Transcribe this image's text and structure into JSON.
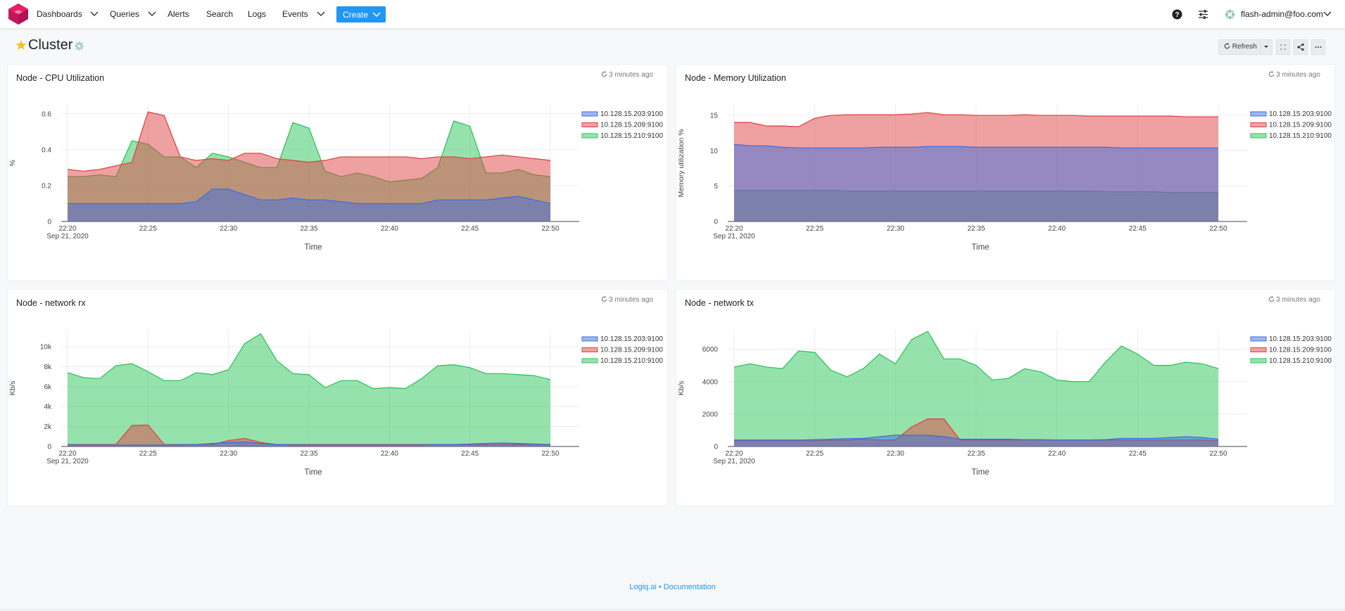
{
  "nav": {
    "items": [
      "Dashboards",
      "Queries",
      "Alerts",
      "Search",
      "Logs",
      "Events"
    ],
    "create_label": "Create",
    "user": "flash-admin@foo.com"
  },
  "page": {
    "title": "Cluster",
    "refresh_label": "Refresh"
  },
  "footer": {
    "brand": "Logiq.ai",
    "separator": "•",
    "docs": "Documentation"
  },
  "colors": {
    "blue": "#3d6fe0",
    "red": "#e04444",
    "green": "#2ec55b",
    "accent": "#2196f3"
  },
  "widgets": [
    {
      "title": "Node - CPU Utilization",
      "updated": "3 minutes ago"
    },
    {
      "title": "Node - Memory Utilization",
      "updated": "3 minutes ago"
    },
    {
      "title": "Node - network rx",
      "updated": "3 minutes ago"
    },
    {
      "title": "Node - network tx",
      "updated": "3 minutes ago"
    }
  ],
  "chart_data": [
    {
      "type": "area",
      "ylabel": "%",
      "xlabel": "Time",
      "x": [
        "22:20",
        "22:21",
        "22:22",
        "22:23",
        "22:24",
        "22:25",
        "22:26",
        "22:27",
        "22:28",
        "22:29",
        "22:30",
        "22:31",
        "22:32",
        "22:33",
        "22:34",
        "22:35",
        "22:36",
        "22:37",
        "22:38",
        "22:39",
        "22:40",
        "22:41",
        "22:42",
        "22:43",
        "22:44",
        "22:45",
        "22:46",
        "22:47",
        "22:48",
        "22:49",
        "22:50"
      ],
      "xticks": [
        "22:20",
        "22:25",
        "22:30",
        "22:35",
        "22:40",
        "22:45",
        "22:50"
      ],
      "xsub": "Sep 21, 2020",
      "yticks": [
        "0",
        "0.2",
        "0.4",
        "0.6"
      ],
      "ylim": [
        0,
        0.65
      ],
      "series": [
        {
          "name": "10.128.15.203:9100",
          "color": "blue",
          "values": [
            0.1,
            0.1,
            0.1,
            0.1,
            0.1,
            0.1,
            0.1,
            0.1,
            0.11,
            0.18,
            0.18,
            0.15,
            0.12,
            0.12,
            0.13,
            0.12,
            0.12,
            0.11,
            0.1,
            0.1,
            0.1,
            0.1,
            0.1,
            0.12,
            0.12,
            0.12,
            0.12,
            0.13,
            0.14,
            0.12,
            0.1
          ]
        },
        {
          "name": "10.128.15.209:9100",
          "color": "red",
          "values": [
            0.29,
            0.28,
            0.29,
            0.31,
            0.33,
            0.61,
            0.59,
            0.36,
            0.34,
            0.35,
            0.34,
            0.38,
            0.38,
            0.35,
            0.34,
            0.33,
            0.34,
            0.36,
            0.36,
            0.36,
            0.36,
            0.36,
            0.35,
            0.36,
            0.36,
            0.35,
            0.36,
            0.37,
            0.36,
            0.35,
            0.34
          ]
        },
        {
          "name": "10.128.15.210:9100",
          "color": "green",
          "values": [
            0.25,
            0.25,
            0.26,
            0.25,
            0.45,
            0.43,
            0.36,
            0.36,
            0.3,
            0.38,
            0.36,
            0.33,
            0.3,
            0.3,
            0.55,
            0.52,
            0.28,
            0.25,
            0.27,
            0.25,
            0.22,
            0.23,
            0.24,
            0.3,
            0.56,
            0.53,
            0.27,
            0.27,
            0.29,
            0.26,
            0.25
          ]
        }
      ]
    },
    {
      "type": "area",
      "ylabel": "Memory utilization %",
      "xlabel": "Time",
      "x": [
        "22:20",
        "22:21",
        "22:22",
        "22:23",
        "22:24",
        "22:25",
        "22:26",
        "22:27",
        "22:28",
        "22:29",
        "22:30",
        "22:31",
        "22:32",
        "22:33",
        "22:34",
        "22:35",
        "22:36",
        "22:37",
        "22:38",
        "22:39",
        "22:40",
        "22:41",
        "22:42",
        "22:43",
        "22:44",
        "22:45",
        "22:46",
        "22:47",
        "22:48",
        "22:49",
        "22:50"
      ],
      "xticks": [
        "22:20",
        "22:25",
        "22:30",
        "22:35",
        "22:40",
        "22:45",
        "22:50"
      ],
      "xsub": "Sep 21, 2020",
      "yticks": [
        "0",
        "5",
        "10",
        "15"
      ],
      "ylim": [
        0,
        16.5
      ],
      "series": [
        {
          "name": "10.128.15.203:9100",
          "color": "blue",
          "values": [
            10.9,
            10.7,
            10.7,
            10.5,
            10.4,
            10.4,
            10.4,
            10.4,
            10.4,
            10.5,
            10.5,
            10.5,
            10.6,
            10.6,
            10.6,
            10.5,
            10.5,
            10.5,
            10.5,
            10.5,
            10.5,
            10.5,
            10.5,
            10.5,
            10.4,
            10.4,
            10.4,
            10.4,
            10.4,
            10.4,
            10.4
          ]
        },
        {
          "name": "10.128.15.209:9100",
          "color": "red",
          "values": [
            14.0,
            14.0,
            13.5,
            13.5,
            13.4,
            14.6,
            15.0,
            15.1,
            15.1,
            15.1,
            15.1,
            15.2,
            15.4,
            15.1,
            15.1,
            15.0,
            15.0,
            15.0,
            15.1,
            15.0,
            15.0,
            15.0,
            14.9,
            14.9,
            14.9,
            14.9,
            14.9,
            14.9,
            14.8,
            14.8,
            14.8
          ]
        },
        {
          "name": "10.128.15.210:9100",
          "color": "green",
          "values": [
            4.4,
            4.4,
            4.4,
            4.4,
            4.4,
            4.4,
            4.4,
            4.3,
            4.3,
            4.3,
            4.3,
            4.3,
            4.3,
            4.3,
            4.3,
            4.3,
            4.3,
            4.3,
            4.3,
            4.3,
            4.3,
            4.3,
            4.3,
            4.2,
            4.2,
            4.2,
            4.2,
            4.1,
            4.1,
            4.1,
            4.1
          ]
        }
      ]
    },
    {
      "type": "area",
      "ylabel": "Kb/s",
      "xlabel": "Time",
      "x": [
        "22:20",
        "22:21",
        "22:22",
        "22:23",
        "22:24",
        "22:25",
        "22:26",
        "22:27",
        "22:28",
        "22:29",
        "22:30",
        "22:31",
        "22:32",
        "22:33",
        "22:34",
        "22:35",
        "22:36",
        "22:37",
        "22:38",
        "22:39",
        "22:40",
        "22:41",
        "22:42",
        "22:43",
        "22:44",
        "22:45",
        "22:46",
        "22:47",
        "22:48",
        "22:49",
        "22:50"
      ],
      "xticks": [
        "22:20",
        "22:25",
        "22:30",
        "22:35",
        "22:40",
        "22:45",
        "22:50"
      ],
      "xsub": "Sep 21, 2020",
      "yticks": [
        "0",
        "2k",
        "4k",
        "6k",
        "8k",
        "10k"
      ],
      "ylim": [
        0,
        11700
      ],
      "series": [
        {
          "name": "10.128.15.203:9100",
          "color": "blue",
          "values": [
            150,
            150,
            150,
            150,
            150,
            150,
            150,
            150,
            200,
            300,
            400,
            450,
            300,
            200,
            150,
            150,
            150,
            150,
            150,
            150,
            150,
            150,
            150,
            200,
            200,
            250,
            300,
            350,
            300,
            250,
            200
          ]
        },
        {
          "name": "10.128.15.209:9100",
          "color": "red",
          "values": [
            200,
            200,
            200,
            200,
            2100,
            2150,
            200,
            200,
            200,
            200,
            600,
            800,
            400,
            200,
            200,
            200,
            200,
            200,
            200,
            200,
            200,
            200,
            200,
            200,
            200,
            200,
            200,
            200,
            200,
            200,
            200
          ]
        },
        {
          "name": "10.128.15.210:9100",
          "color": "green",
          "values": [
            7400,
            6900,
            6800,
            8100,
            8300,
            7500,
            6600,
            6600,
            7400,
            7200,
            7700,
            10300,
            11300,
            8600,
            7300,
            7200,
            5900,
            6600,
            6600,
            5800,
            5900,
            5800,
            6800,
            8100,
            8200,
            7900,
            7300,
            7300,
            7200,
            7100,
            6700
          ]
        }
      ]
    },
    {
      "type": "area",
      "ylabel": "Kb/s",
      "xlabel": "Time",
      "x": [
        "22:20",
        "22:21",
        "22:22",
        "22:23",
        "22:24",
        "22:25",
        "22:26",
        "22:27",
        "22:28",
        "22:29",
        "22:30",
        "22:31",
        "22:32",
        "22:33",
        "22:34",
        "22:35",
        "22:36",
        "22:37",
        "22:38",
        "22:39",
        "22:40",
        "22:41",
        "22:42",
        "22:43",
        "22:44",
        "22:45",
        "22:46",
        "22:47",
        "22:48",
        "22:49",
        "22:50"
      ],
      "xticks": [
        "22:20",
        "22:25",
        "22:30",
        "22:35",
        "22:40",
        "22:45",
        "22:50"
      ],
      "xsub": "Sep 21, 2020",
      "yticks": [
        "0",
        "2000",
        "4000",
        "6000"
      ],
      "ylim": [
        0,
        7200
      ],
      "series": [
        {
          "name": "10.128.15.203:9100",
          "color": "blue",
          "values": [
            400,
            400,
            400,
            400,
            400,
            420,
            450,
            480,
            500,
            600,
            700,
            700,
            700,
            600,
            450,
            450,
            450,
            450,
            420,
            420,
            400,
            400,
            400,
            420,
            500,
            500,
            500,
            550,
            600,
            550,
            450
          ]
        },
        {
          "name": "10.128.15.209:9100",
          "color": "red",
          "values": [
            350,
            350,
            350,
            350,
            350,
            350,
            380,
            400,
            450,
            400,
            400,
            1200,
            1700,
            1700,
            400,
            400,
            400,
            400,
            400,
            400,
            400,
            400,
            400,
            400,
            400,
            400,
            400,
            400,
            400,
            400,
            350
          ]
        },
        {
          "name": "10.128.15.210:9100",
          "color": "green",
          "values": [
            4900,
            5100,
            4900,
            4800,
            5900,
            5800,
            4700,
            4300,
            4800,
            5700,
            5100,
            6600,
            7100,
            5400,
            5400,
            5000,
            4100,
            4200,
            4800,
            4600,
            4100,
            4000,
            4000,
            5200,
            6200,
            5700,
            5000,
            5000,
            5200,
            5100,
            4800
          ]
        }
      ]
    }
  ]
}
